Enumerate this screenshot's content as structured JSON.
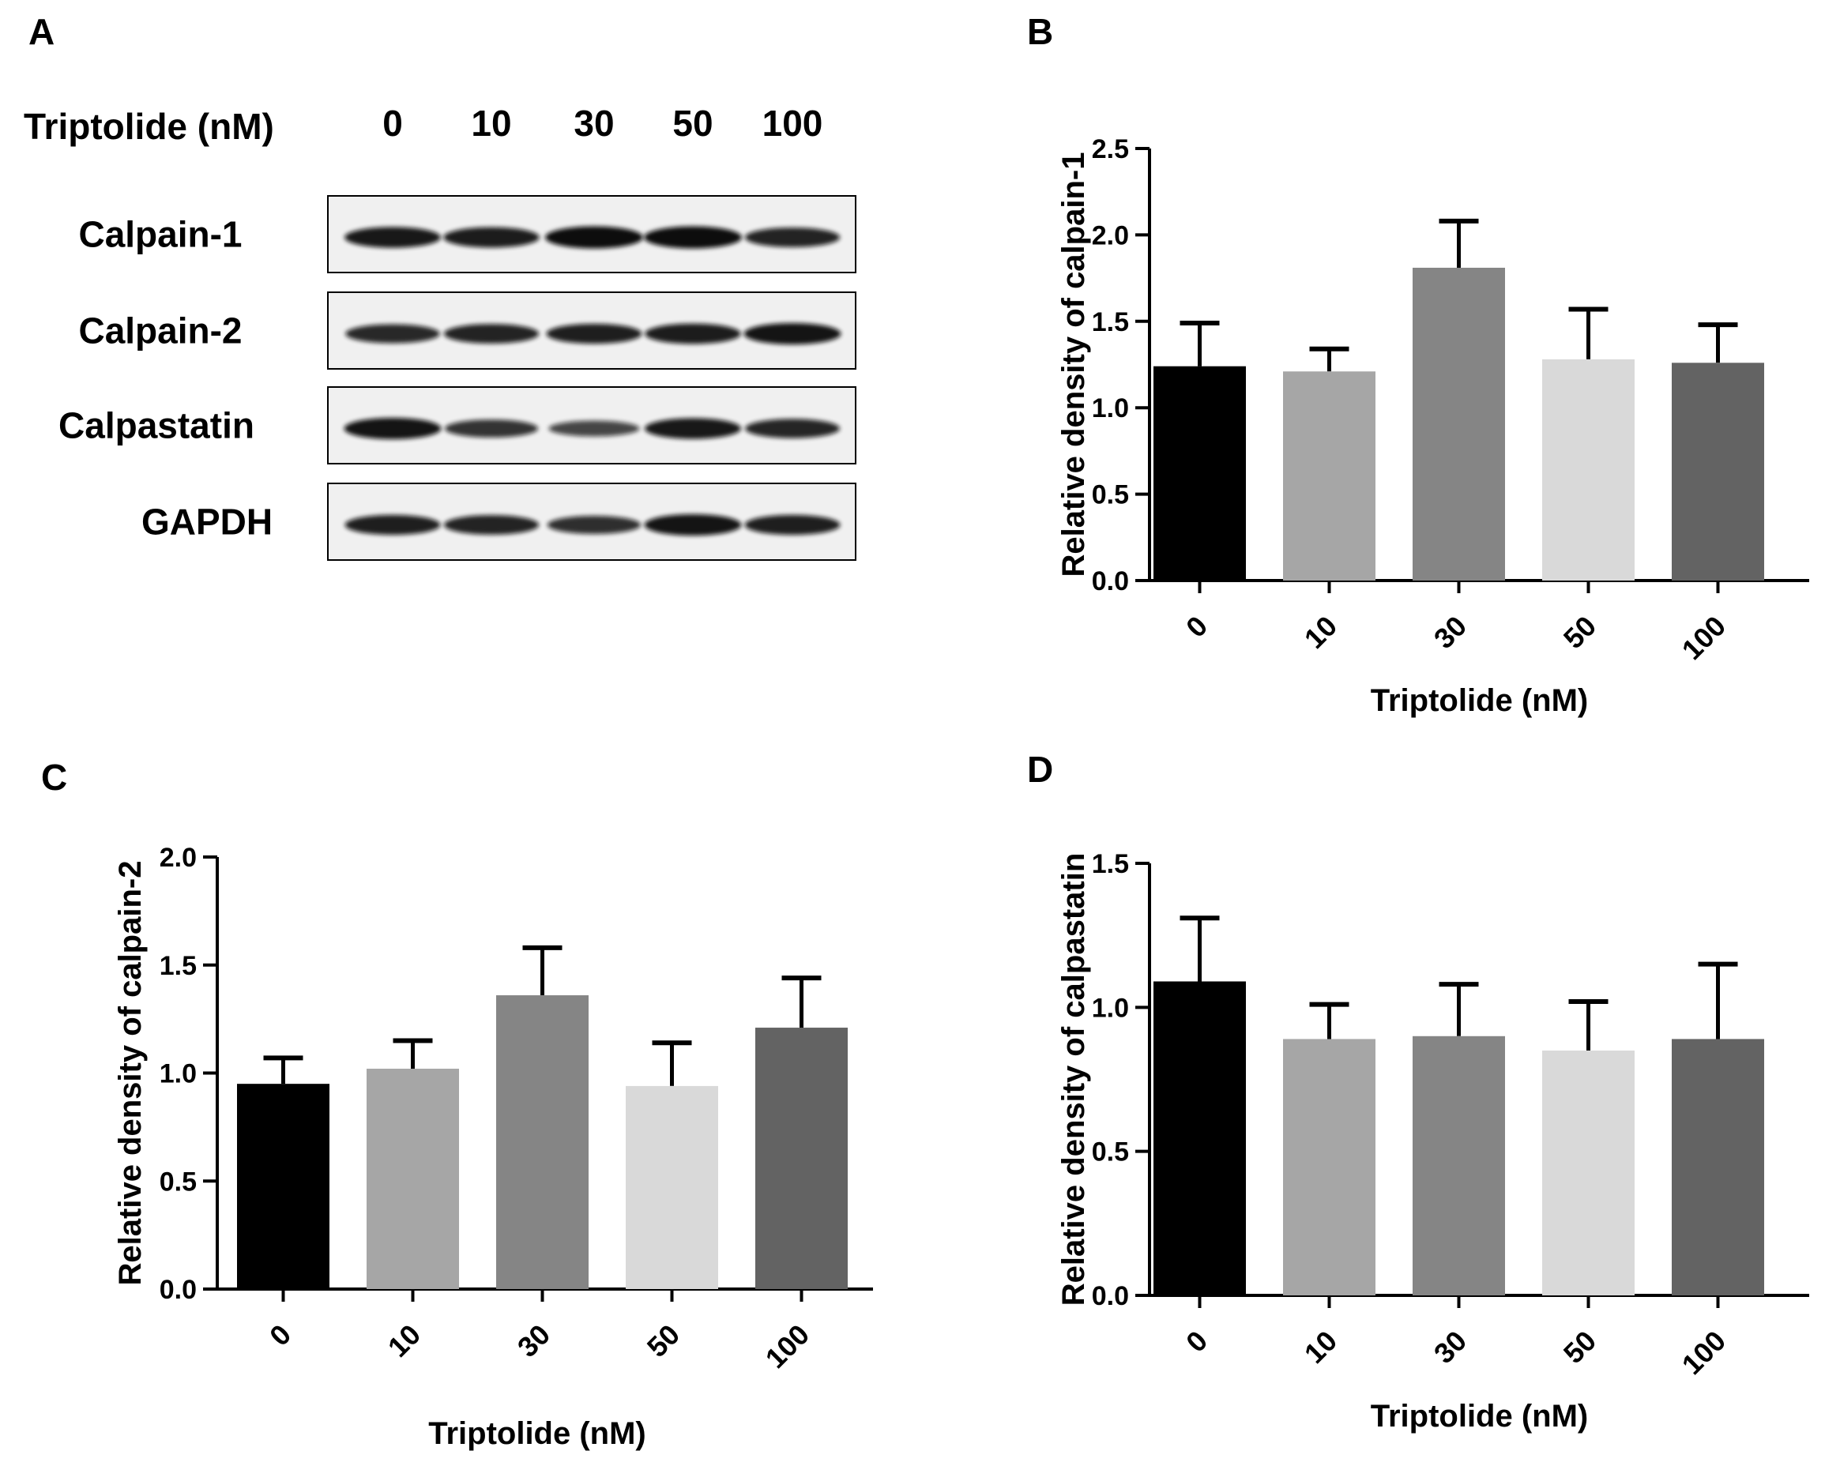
{
  "panel_a": {
    "label": "A",
    "treatment_label": "Triptolide (nM)",
    "lanes": [
      "0",
      "10",
      "30",
      "50",
      "100"
    ],
    "rows": [
      {
        "protein": "Calpain-1",
        "band_intensity": [
          0.9,
          0.88,
          1.0,
          1.0,
          0.82
        ]
      },
      {
        "protein": "Calpain-2",
        "band_intensity": [
          0.78,
          0.82,
          0.85,
          0.88,
          0.95
        ]
      },
      {
        "protein": "Calpastatin",
        "band_intensity": [
          0.95,
          0.7,
          0.55,
          0.9,
          0.8
        ]
      },
      {
        "protein": "GAPDH",
        "band_intensity": [
          0.85,
          0.82,
          0.72,
          0.95,
          0.85
        ]
      }
    ]
  },
  "colors": {
    "bar_fills": [
      "#000000",
      "#a6a6a6",
      "#858585",
      "#d9d9d9",
      "#636363"
    ],
    "axis": "#000000",
    "blot_bg": "#f0f0f0",
    "band": "#0f0f0f"
  },
  "chart_data": [
    {
      "panel": "B",
      "type": "bar",
      "categories": [
        "0",
        "10",
        "30",
        "50",
        "100"
      ],
      "values": [
        1.24,
        1.21,
        1.81,
        1.28,
        1.26
      ],
      "errors": [
        0.25,
        0.13,
        0.27,
        0.29,
        0.22
      ],
      "ylim": [
        0,
        2.5
      ],
      "yticks": [
        "0.0",
        "0.5",
        "1.0",
        "1.5",
        "2.0",
        "2.5"
      ],
      "ylabel": "Relative density of calpain-1",
      "xlabel": "Triptolide (nM)"
    },
    {
      "panel": "C",
      "type": "bar",
      "categories": [
        "0",
        "10",
        "30",
        "50",
        "100"
      ],
      "values": [
        0.95,
        1.02,
        1.36,
        0.94,
        1.21
      ],
      "errors": [
        0.12,
        0.13,
        0.22,
        0.2,
        0.23
      ],
      "ylim": [
        0,
        2.0
      ],
      "yticks": [
        "0.0",
        "0.5",
        "1.0",
        "1.5",
        "2.0"
      ],
      "ylabel": "Relative density of calpain-2",
      "xlabel": "Triptolide (nM)"
    },
    {
      "panel": "D",
      "type": "bar",
      "categories": [
        "0",
        "10",
        "30",
        "50",
        "100"
      ],
      "values": [
        1.09,
        0.89,
        0.9,
        0.85,
        0.89
      ],
      "errors": [
        0.22,
        0.12,
        0.18,
        0.17,
        0.26
      ],
      "ylim": [
        0,
        1.5
      ],
      "yticks": [
        "0.0",
        "0.5",
        "1.0",
        "1.5"
      ],
      "ylabel": "Relative density of calpastatin",
      "xlabel": "Triptolide (nM)"
    }
  ]
}
